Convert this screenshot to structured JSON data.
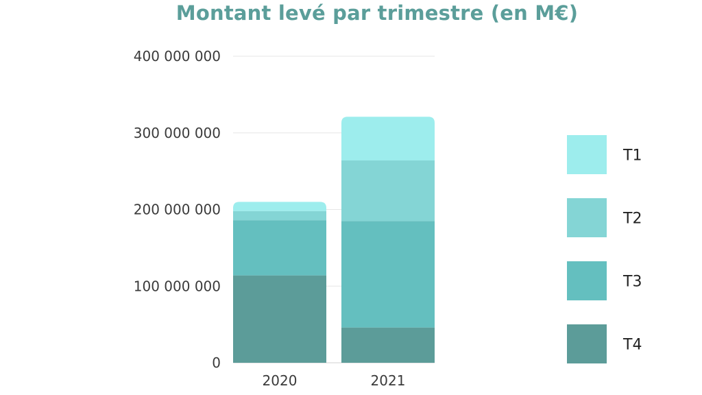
{
  "chart_data": {
    "type": "bar",
    "stacked": true,
    "title": "Montant levé par trimestre (en M€)",
    "categories": [
      "2020",
      "2021"
    ],
    "series": [
      {
        "name": "T4",
        "color": "#5c9c99",
        "values": [
          114000000,
          46000000
        ]
      },
      {
        "name": "T3",
        "color": "#64bfbf",
        "values": [
          72000000,
          139000000
        ]
      },
      {
        "name": "T2",
        "color": "#84d5d5",
        "values": [
          12000000,
          79000000
        ]
      },
      {
        "name": "T1",
        "color": "#9deded",
        "values": [
          12000000,
          57000000
        ]
      }
    ],
    "legend_order": [
      "T1",
      "T2",
      "T3",
      "T4"
    ],
    "ylim": [
      0,
      400000000
    ],
    "yticks": [
      0,
      100000000,
      200000000,
      300000000,
      400000000
    ],
    "ytick_labels": [
      "0",
      "100 000 000",
      "200 000 000",
      "300 000 000",
      "400 000 000"
    ],
    "grid": true,
    "legend_position": "right"
  }
}
